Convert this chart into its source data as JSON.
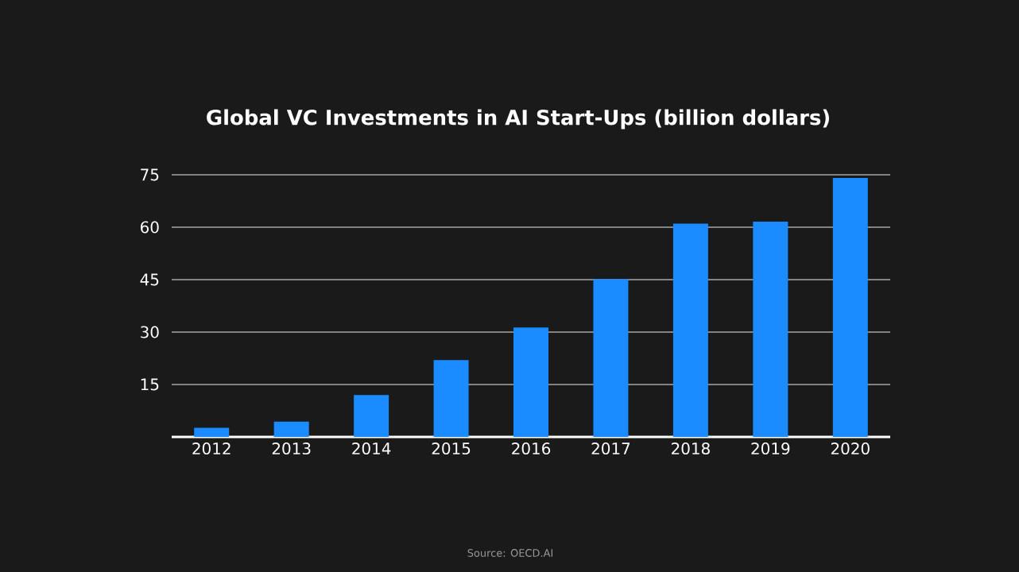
{
  "chart_data": {
    "type": "bar",
    "title": "Global VC Investments in AI Start-Ups (billion dollars)",
    "categories": [
      "2012",
      "2013",
      "2014",
      "2015",
      "2016",
      "2017",
      "2018",
      "2019",
      "2020"
    ],
    "values": [
      2.6,
      4.4,
      12.0,
      22.0,
      31.3,
      45.2,
      61.0,
      61.6,
      74.1
    ],
    "color": "#1a8cff",
    "ylim": [
      0,
      75
    ],
    "yticks": [
      15,
      30,
      45,
      60,
      75
    ],
    "grid": "y",
    "annotations": [
      "Source: OECD.AI"
    ]
  }
}
